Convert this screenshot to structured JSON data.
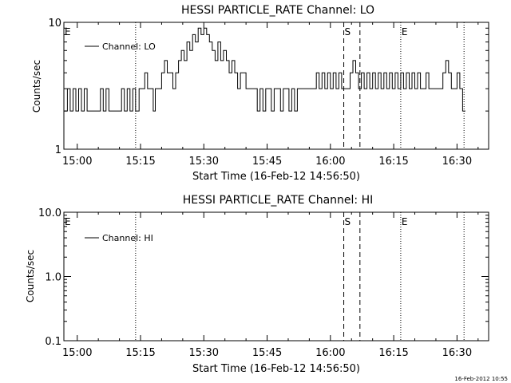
{
  "colors": {
    "background": "#ffffff",
    "foreground": "#000000"
  },
  "footer": {
    "timestamp": "16-Feb-2012 10:55"
  },
  "chart_data": [
    {
      "type": "line",
      "title": "HESSI PARTICLE_RATE Channel: LO",
      "xlabel": "Start Time (16-Feb-12 14:56:50)",
      "ylabel": "Counts/sec",
      "y_scale": "log",
      "ylim": [
        1,
        10
      ],
      "xlim": [
        "14:56:50",
        "16:37:30"
      ],
      "x_ticks": [
        "15:00",
        "15:15",
        "15:30",
        "15:45",
        "16:00",
        "16:15",
        "16:30"
      ],
      "y_ticks": [
        "1",
        "10"
      ],
      "legend": {
        "position": "top-left",
        "entries": [
          "Channel: LO"
        ]
      },
      "markers": [
        {
          "label": "E",
          "time": "14:56:50",
          "style": "none"
        },
        {
          "label": "",
          "time": "15:13:50",
          "style": "dotted"
        },
        {
          "label": "S",
          "time": "16:03:10",
          "style": "dashed"
        },
        {
          "label": "",
          "time": "16:07:00",
          "style": "dashed"
        },
        {
          "label": "E",
          "time": "16:16:40",
          "style": "dotted"
        },
        {
          "label": "",
          "time": "16:31:40",
          "style": "dotted"
        }
      ],
      "series": [
        {
          "name": "Channel: LO",
          "points": [
            [
              "14:56:50",
              2
            ],
            [
              "14:57:40",
              3
            ],
            [
              "14:58:20",
              2
            ],
            [
              "14:59:00",
              3
            ],
            [
              "14:59:40",
              2
            ],
            [
              "15:00:20",
              3
            ],
            [
              "15:01:00",
              2
            ],
            [
              "15:01:40",
              3
            ],
            [
              "15:02:20",
              2
            ],
            [
              "15:05:00",
              2
            ],
            [
              "15:05:30",
              3
            ],
            [
              "15:06:10",
              2
            ],
            [
              "15:06:50",
              3
            ],
            [
              "15:07:30",
              2
            ],
            [
              "15:10:00",
              2
            ],
            [
              "15:10:30",
              3
            ],
            [
              "15:11:10",
              2
            ],
            [
              "15:11:50",
              3
            ],
            [
              "15:12:30",
              2
            ],
            [
              "15:13:10",
              3
            ],
            [
              "15:13:50",
              2
            ],
            [
              "15:14:40",
              3
            ],
            [
              "15:15:30",
              3
            ],
            [
              "15:16:00",
              4
            ],
            [
              "15:16:40",
              3
            ],
            [
              "15:17:20",
              3
            ],
            [
              "15:18:00",
              2
            ],
            [
              "15:18:30",
              3
            ],
            [
              "15:19:10",
              3
            ],
            [
              "15:20:00",
              4
            ],
            [
              "15:20:40",
              5
            ],
            [
              "15:21:20",
              4
            ],
            [
              "15:22:00",
              4
            ],
            [
              "15:22:40",
              3
            ],
            [
              "15:23:20",
              4
            ],
            [
              "15:24:00",
              5
            ],
            [
              "15:24:40",
              6
            ],
            [
              "15:25:20",
              5
            ],
            [
              "15:26:00",
              7
            ],
            [
              "15:26:40",
              6
            ],
            [
              "15:27:20",
              8
            ],
            [
              "15:28:00",
              7
            ],
            [
              "15:28:40",
              9
            ],
            [
              "15:29:20",
              8
            ],
            [
              "15:30:00",
              9
            ],
            [
              "15:30:40",
              8
            ],
            [
              "15:31:20",
              7
            ],
            [
              "15:32:00",
              6
            ],
            [
              "15:32:40",
              5
            ],
            [
              "15:33:20",
              7
            ],
            [
              "15:34:00",
              5
            ],
            [
              "15:34:40",
              6
            ],
            [
              "15:35:20",
              5
            ],
            [
              "15:36:00",
              4
            ],
            [
              "15:36:40",
              5
            ],
            [
              "15:37:20",
              4
            ],
            [
              "15:38:00",
              3
            ],
            [
              "15:38:40",
              4
            ],
            [
              "15:39:20",
              4
            ],
            [
              "15:40:00",
              3
            ],
            [
              "15:42:00",
              3
            ],
            [
              "15:42:40",
              2
            ],
            [
              "15:43:20",
              3
            ],
            [
              "15:44:00",
              2
            ],
            [
              "15:44:40",
              3
            ],
            [
              "15:45:20",
              3
            ],
            [
              "15:46:00",
              2
            ],
            [
              "15:46:40",
              3
            ],
            [
              "15:47:30",
              3
            ],
            [
              "15:48:10",
              2
            ],
            [
              "15:48:50",
              3
            ],
            [
              "15:49:30",
              3
            ],
            [
              "15:50:10",
              2
            ],
            [
              "15:50:50",
              3
            ],
            [
              "15:51:30",
              2
            ],
            [
              "15:52:10",
              3
            ],
            [
              "15:56:00",
              3
            ],
            [
              "15:56:40",
              4
            ],
            [
              "15:57:20",
              3
            ],
            [
              "15:58:00",
              4
            ],
            [
              "15:58:40",
              3
            ],
            [
              "15:59:20",
              4
            ],
            [
              "16:00:00",
              3
            ],
            [
              "16:00:40",
              4
            ],
            [
              "16:01:20",
              3
            ],
            [
              "16:02:00",
              4
            ],
            [
              "16:02:40",
              3
            ],
            [
              "16:04:00",
              3
            ],
            [
              "16:04:40",
              4
            ],
            [
              "16:05:20",
              5
            ],
            [
              "16:06:00",
              4
            ],
            [
              "16:06:40",
              3
            ],
            [
              "16:07:20",
              4
            ],
            [
              "16:08:00",
              3
            ],
            [
              "16:08:40",
              4
            ],
            [
              "16:09:20",
              3
            ],
            [
              "16:10:00",
              4
            ],
            [
              "16:10:40",
              3
            ],
            [
              "16:11:20",
              4
            ],
            [
              "16:12:00",
              3
            ],
            [
              "16:12:40",
              4
            ],
            [
              "16:13:20",
              3
            ],
            [
              "16:14:00",
              4
            ],
            [
              "16:14:40",
              3
            ],
            [
              "16:15:20",
              4
            ],
            [
              "16:16:00",
              3
            ],
            [
              "16:16:40",
              4
            ],
            [
              "16:17:20",
              3
            ],
            [
              "16:18:00",
              4
            ],
            [
              "16:18:40",
              3
            ],
            [
              "16:19:20",
              4
            ],
            [
              "16:20:00",
              3
            ],
            [
              "16:20:40",
              4
            ],
            [
              "16:21:20",
              3
            ],
            [
              "16:22:00",
              3
            ],
            [
              "16:22:40",
              4
            ],
            [
              "16:23:20",
              3
            ],
            [
              "16:24:00",
              3
            ],
            [
              "16:26:00",
              3
            ],
            [
              "16:26:40",
              4
            ],
            [
              "16:27:20",
              5
            ],
            [
              "16:28:00",
              4
            ],
            [
              "16:28:40",
              3
            ],
            [
              "16:29:20",
              3
            ],
            [
              "16:30:00",
              4
            ],
            [
              "16:30:40",
              3
            ],
            [
              "16:31:20",
              2
            ],
            [
              "16:32:00",
              2
            ]
          ]
        }
      ]
    },
    {
      "type": "line",
      "title": "HESSI PARTICLE_RATE Channel: HI",
      "xlabel": "Start Time (16-Feb-12 14:56:50)",
      "ylabel": "Counts/sec",
      "y_scale": "log",
      "ylim": [
        0.1,
        10
      ],
      "xlim": [
        "14:56:50",
        "16:37:30"
      ],
      "x_ticks": [
        "15:00",
        "15:15",
        "15:30",
        "15:45",
        "16:00",
        "16:15",
        "16:30"
      ],
      "y_ticks": [
        "0.1",
        "1.0",
        "10.0"
      ],
      "legend": {
        "position": "top-left",
        "entries": [
          "Channel: HI"
        ]
      },
      "markers": [
        {
          "label": "E",
          "time": "14:56:50",
          "style": "none"
        },
        {
          "label": "",
          "time": "15:13:50",
          "style": "dotted"
        },
        {
          "label": "S",
          "time": "16:03:10",
          "style": "dashed"
        },
        {
          "label": "",
          "time": "16:07:00",
          "style": "dashed"
        },
        {
          "label": "E",
          "time": "16:16:40",
          "style": "dotted"
        },
        {
          "label": "",
          "time": "16:31:40",
          "style": "dotted"
        }
      ],
      "series": [
        {
          "name": "Channel: HI",
          "points": []
        }
      ]
    }
  ]
}
